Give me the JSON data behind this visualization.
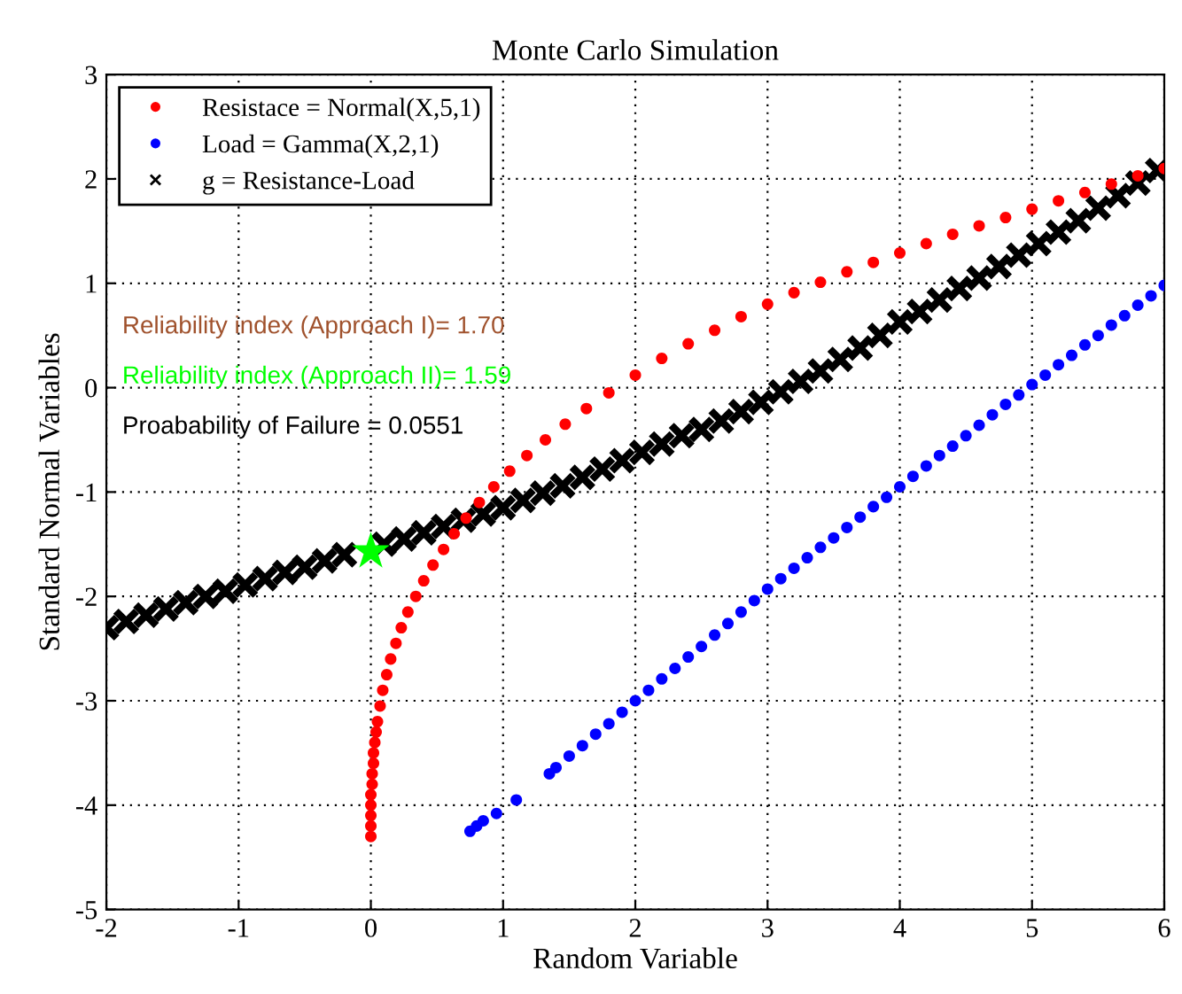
{
  "chart_data": {
    "type": "scatter",
    "title": "Monte Carlo Simulation",
    "xlabel": "Random Variable",
    "ylabel": "Standard Normal Variables",
    "xlim": [
      -2,
      6
    ],
    "ylim": [
      -5,
      3
    ],
    "xticks": [
      -2,
      -1,
      0,
      1,
      2,
      3,
      4,
      5,
      6
    ],
    "yticks": [
      -5,
      -4,
      -3,
      -2,
      -1,
      0,
      1,
      2,
      3
    ],
    "grid": true,
    "legend": "top left",
    "series": [
      {
        "name": "Resistace = Normal(X,5,1)",
        "color": "#ff0000",
        "marker": "circle",
        "x": [
          0,
          0,
          0,
          0,
          0,
          0.01,
          0.01,
          0.02,
          0.02,
          0.03,
          0.04,
          0.05,
          0.07,
          0.09,
          0.12,
          0.15,
          0.19,
          0.23,
          0.28,
          0.34,
          0.4,
          0.47,
          0.55,
          0.63,
          0.72,
          0.82,
          0.93,
          1.05,
          1.18,
          1.32,
          1.47,
          1.63,
          1.8,
          2.0,
          2.2,
          2.4,
          2.6,
          2.8,
          3.0,
          3.2,
          3.4,
          3.6,
          3.8,
          4.0,
          4.2,
          4.4,
          4.6,
          4.8,
          5.0,
          5.2,
          5.4,
          5.6,
          5.8,
          6.0
        ],
        "values": [
          -4.3,
          -4.2,
          -4.1,
          -4.0,
          -3.9,
          -3.8,
          -3.7,
          -3.6,
          -3.5,
          -3.4,
          -3.3,
          -3.2,
          -3.05,
          -2.9,
          -2.75,
          -2.6,
          -2.45,
          -2.3,
          -2.15,
          -2.0,
          -1.85,
          -1.7,
          -1.55,
          -1.4,
          -1.25,
          -1.1,
          -0.95,
          -0.8,
          -0.65,
          -0.5,
          -0.35,
          -0.2,
          -0.05,
          0.12,
          0.28,
          0.42,
          0.55,
          0.68,
          0.8,
          0.91,
          1.01,
          1.11,
          1.2,
          1.29,
          1.38,
          1.47,
          1.55,
          1.63,
          1.71,
          1.79,
          1.87,
          1.95,
          2.03,
          2.1
        ]
      },
      {
        "name": "Load = Gamma(X,2,1)",
        "color": "#0000ff",
        "marker": "circle",
        "x": [
          0.75,
          0.8,
          0.85,
          0.95,
          1.1,
          1.35,
          1.4,
          1.5,
          1.6,
          1.7,
          1.8,
          1.9,
          2.0,
          2.1,
          2.2,
          2.3,
          2.4,
          2.5,
          2.6,
          2.7,
          2.8,
          2.9,
          3.0,
          3.1,
          3.2,
          3.3,
          3.4,
          3.5,
          3.6,
          3.7,
          3.8,
          3.9,
          4.0,
          4.1,
          4.2,
          4.3,
          4.4,
          4.5,
          4.6,
          4.7,
          4.8,
          4.9,
          5.0,
          5.1,
          5.2,
          5.3,
          5.4,
          5.5,
          5.6,
          5.7,
          5.8,
          5.9,
          6.0
        ],
        "values": [
          -4.25,
          -4.2,
          -4.15,
          -4.08,
          -3.95,
          -3.7,
          -3.64,
          -3.53,
          -3.43,
          -3.32,
          -3.22,
          -3.11,
          -3.0,
          -2.9,
          -2.79,
          -2.69,
          -2.58,
          -2.48,
          -2.37,
          -2.26,
          -2.15,
          -2.04,
          -1.93,
          -1.83,
          -1.73,
          -1.63,
          -1.53,
          -1.44,
          -1.34,
          -1.24,
          -1.14,
          -1.05,
          -0.95,
          -0.85,
          -0.75,
          -0.65,
          -0.56,
          -0.46,
          -0.36,
          -0.26,
          -0.16,
          -0.07,
          0.03,
          0.12,
          0.22,
          0.31,
          0.41,
          0.5,
          0.6,
          0.69,
          0.79,
          0.88,
          0.98
        ]
      },
      {
        "name": "g = Resistance-Load",
        "color": "#000000",
        "marker": "cross",
        "x": [
          -2,
          -1.85,
          -1.7,
          -1.55,
          -1.4,
          -1.25,
          -1.1,
          -0.95,
          -0.8,
          -0.65,
          -0.5,
          -0.35,
          -0.2,
          -0.05,
          0.1,
          0.25,
          0.4,
          0.55,
          0.7,
          0.85,
          1.0,
          1.15,
          1.3,
          1.45,
          1.6,
          1.75,
          1.9,
          2.05,
          2.2,
          2.35,
          2.5,
          2.65,
          2.8,
          2.95,
          3.1,
          3.25,
          3.4,
          3.55,
          3.7,
          3.85,
          4.0,
          4.15,
          4.3,
          4.45,
          4.6,
          4.75,
          4.9,
          5.05,
          5.2,
          5.35,
          5.5,
          5.65,
          5.8,
          5.95
        ],
        "values": [
          -2.3,
          -2.24,
          -2.18,
          -2.12,
          -2.06,
          -2.0,
          -1.95,
          -1.89,
          -1.83,
          -1.77,
          -1.72,
          -1.66,
          -1.6,
          null,
          -1.5,
          -1.45,
          -1.39,
          -1.33,
          -1.27,
          -1.21,
          -1.15,
          -1.08,
          -1.01,
          -0.94,
          -0.86,
          -0.78,
          -0.7,
          -0.62,
          -0.54,
          -0.46,
          -0.4,
          -0.32,
          -0.23,
          -0.14,
          -0.04,
          0.06,
          0.16,
          0.27,
          0.38,
          0.5,
          0.63,
          0.73,
          0.84,
          0.95,
          1.05,
          1.16,
          1.27,
          1.38,
          1.49,
          1.6,
          1.72,
          1.84,
          1.96,
          2.08
        ]
      },
      {
        "color": "#00ff00",
        "marker": "star",
        "x": [
          0
        ],
        "values": [
          -1.57
        ]
      }
    ],
    "annotations": [
      "Reliability index (Approach I)= 1.70",
      "Reliability index (Approach II)= 1.59",
      "Proabability of Failure = 0.0551"
    ]
  }
}
